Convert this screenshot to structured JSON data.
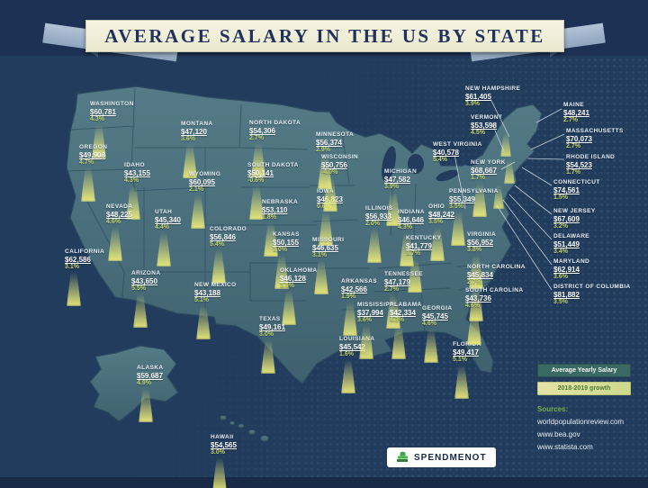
{
  "title": "AVERAGE SALARY IN THE US BY STATE",
  "legend": {
    "salary_label": "Average Yearly Salary",
    "growth_label": "2018-2019 growth"
  },
  "sources": {
    "heading": "Sources:",
    "items": [
      "worldpopulationreview.com",
      "www.bea.gov",
      "www.statista.com"
    ]
  },
  "logo": {
    "text": "SPENDMENOT",
    "icon": "money-icon"
  },
  "colors": {
    "background": "#223c5d",
    "state_fill": "#4e7380",
    "glow": "#ece97d",
    "growth_text": "#c2d36b",
    "banner_bg": "#f0efda",
    "banner_text": "#20325b",
    "legend_salary_bg": "#3a6862",
    "legend_growth_bg": "#d9dc95",
    "sources_heading": "#76b04a",
    "logo_green": "#3fae49"
  },
  "chart_data": {
    "type": "heatmap",
    "subtype": "us-state-map-infographic",
    "title": "Average Salary in the US by State",
    "legend": [
      "Average Yearly Salary",
      "2018-2019 growth"
    ],
    "states": [
      {
        "id": "washington",
        "name": "WASHINGTON",
        "salary": "$60,781",
        "growth": "4.3%"
      },
      {
        "id": "oregon",
        "name": "OREGON",
        "salary": "$49,908",
        "growth": "4.7%"
      },
      {
        "id": "idaho",
        "name": "IDAHO",
        "salary": "$43,155",
        "growth": "4.3%"
      },
      {
        "id": "montana",
        "name": "MONTANA",
        "salary": "$47,120",
        "growth": "3.6%"
      },
      {
        "id": "wyoming",
        "name": "WYOMING",
        "salary": "$60,095",
        "growth": "2.1%"
      },
      {
        "id": "nevada",
        "name": "NEVADA",
        "salary": "$48,225",
        "growth": "4.6%"
      },
      {
        "id": "utah",
        "name": "UTAH",
        "salary": "$45,340",
        "growth": "4.4%"
      },
      {
        "id": "colorado",
        "name": "COLORADO",
        "salary": "$56,846",
        "growth": "5.4%"
      },
      {
        "id": "california",
        "name": "CALIFORNIA",
        "salary": "$62,586",
        "growth": "3.1%"
      },
      {
        "id": "arizona",
        "name": "ARIZONA",
        "salary": "$43,650",
        "growth": "5.5%"
      },
      {
        "id": "new-mexico",
        "name": "NEW MEXICO",
        "salary": "$43,188",
        "growth": "5.1%"
      },
      {
        "id": "alaska",
        "name": "ALASKA",
        "salary": "$59,687",
        "growth": "4.9%"
      },
      {
        "id": "hawaii",
        "name": "HAWAII",
        "salary": "$54,565",
        "growth": "3.0%"
      },
      {
        "id": "north-dakota",
        "name": "NORTH DAKOTA",
        "salary": "$54,306",
        "growth": "2.7%"
      },
      {
        "id": "south-dakota",
        "name": "SOUTH DAKOTA",
        "salary": "$50,141",
        "growth": "-0.6%"
      },
      {
        "id": "nebraska",
        "name": "NEBRASKA",
        "salary": "$53,110",
        "growth": "1.8%"
      },
      {
        "id": "kansas",
        "name": "KANSAS",
        "salary": "$50,155",
        "growth": "3.0%"
      },
      {
        "id": "oklahoma",
        "name": "OKLAHOMA",
        "salary": "$46,128",
        "growth": "3.0%"
      },
      {
        "id": "texas",
        "name": "TEXAS",
        "salary": "$49,161",
        "growth": "3.0%"
      },
      {
        "id": "minnesota",
        "name": "MINNESOTA",
        "salary": "$56,374",
        "growth": "2.9%"
      },
      {
        "id": "iowa",
        "name": "IOWA",
        "salary": "$46,823",
        "growth": "0.6%"
      },
      {
        "id": "missouri",
        "name": "MISSOURI",
        "salary": "$46,635",
        "growth": "3.1%"
      },
      {
        "id": "arkansas",
        "name": "ARKANSAS",
        "salary": "$42,566",
        "growth": "1.9%"
      },
      {
        "id": "louisiana",
        "name": "LOUISIANA",
        "salary": "$45,542",
        "growth": "1.6%"
      },
      {
        "id": "wisconsin",
        "name": "WISCONSIN",
        "salary": "$50,756",
        "growth": "-4.0%"
      },
      {
        "id": "michigan",
        "name": "MICHIGAN",
        "salary": "$47,582",
        "growth": "3.9%"
      },
      {
        "id": "illinois",
        "name": "ILLINOIS",
        "salary": "$56,933",
        "growth": "2.0%"
      },
      {
        "id": "indiana",
        "name": "INDIANA",
        "salary": "$46,646",
        "growth": "4.3%"
      },
      {
        "id": "ohio",
        "name": "OHIO",
        "salary": "$48,242",
        "growth": "3.5%"
      },
      {
        "id": "kentucky",
        "name": "KENTUCKY",
        "salary": "$41,779",
        "growth": "3.7%"
      },
      {
        "id": "tennessee",
        "name": "TENNESSEE",
        "salary": "$47,179",
        "growth": "2.7%"
      },
      {
        "id": "mississippi",
        "name": "MISSISSIPPI",
        "salary": "$37,994",
        "growth": "3.6%"
      },
      {
        "id": "alabama",
        "name": "ALABAMA",
        "salary": "$42,334",
        "growth": "4.3%"
      },
      {
        "id": "georgia",
        "name": "GEORGIA",
        "salary": "$45,745",
        "growth": "4.6%"
      },
      {
        "id": "florida",
        "name": "FLORIDA",
        "salary": "$49,417",
        "growth": "5.1%"
      },
      {
        "id": "west-virginia",
        "name": "WEST VIRGINIA",
        "salary": "$40,578",
        "growth": "5.4%"
      },
      {
        "id": "virginia",
        "name": "VIRGINIA",
        "salary": "$56,952",
        "growth": "3.8%"
      },
      {
        "id": "north-carolina",
        "name": "NORTH CAROLINA",
        "salary": "$45,834",
        "growth": "2.7%"
      },
      {
        "id": "south-carolina",
        "name": "SOUTH CAROLINA",
        "salary": "$43,736",
        "growth": "4.6%"
      },
      {
        "id": "new-york",
        "name": "NEW YORK",
        "salary": "$68,667",
        "growth": "1.7%"
      },
      {
        "id": "pennsylvania",
        "name": "PENNSYLVANIA",
        "salary": "$55,349",
        "growth": "3.5%"
      },
      {
        "id": "new-hampshire",
        "name": "NEW HAMPSHIRE",
        "salary": "$61,405",
        "growth": "3.9%"
      },
      {
        "id": "vermont",
        "name": "VERMONT",
        "salary": "$53,598",
        "growth": "4.5%"
      },
      {
        "id": "maine",
        "name": "MAINE",
        "salary": "$48,241",
        "growth": "2.7%"
      },
      {
        "id": "massachusetts",
        "name": "MASSACHUSETTS",
        "salary": "$70,073",
        "growth": "2.7%"
      },
      {
        "id": "rhode-island",
        "name": "RHODE ISLAND",
        "salary": "$54,523",
        "growth": "1.7%"
      },
      {
        "id": "connecticut",
        "name": "CONNECTICUT",
        "salary": "$74,561",
        "growth": "1.5%"
      },
      {
        "id": "new-jersey",
        "name": "NEW JERSEY",
        "salary": "$67,609",
        "growth": "3.2%"
      },
      {
        "id": "delaware",
        "name": "DELAWARE",
        "salary": "$51,449",
        "growth": "3.4%"
      },
      {
        "id": "maryland",
        "name": "MARYLAND",
        "salary": "$62,914",
        "growth": "3.6%"
      },
      {
        "id": "district-of-columbia",
        "name": "DISTRICT OF COLUMBIA",
        "salary": "$81,882",
        "growth": "3.5%"
      }
    ]
  }
}
